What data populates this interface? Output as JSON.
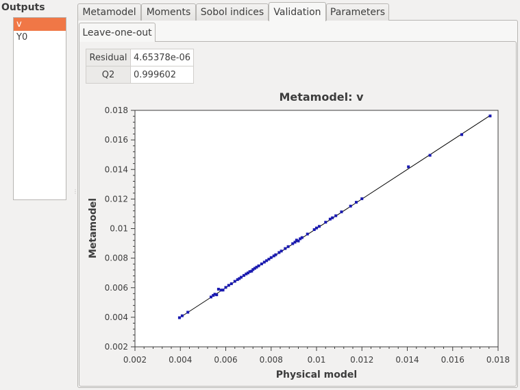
{
  "outputs": {
    "title": "Outputs",
    "items": [
      {
        "label": "v",
        "selected": true
      },
      {
        "label": "Y0",
        "selected": false
      }
    ]
  },
  "tabs": [
    {
      "label": "Metamodel",
      "active": false
    },
    {
      "label": "Moments",
      "active": false
    },
    {
      "label": "Sobol indices",
      "active": false
    },
    {
      "label": "Validation",
      "active": true
    },
    {
      "label": "Parameters",
      "active": false
    }
  ],
  "subtab": {
    "label": "Leave-one-out"
  },
  "results": {
    "residual_label": "Residual",
    "residual_value": "4.65378e-06",
    "q2_label": "Q2",
    "q2_value": "0.999602"
  },
  "colors": {
    "selection": "#f07746",
    "points": "#1a1ab0",
    "line": "#000000"
  },
  "chart_data": {
    "type": "scatter",
    "title": "Metamodel: v",
    "xlabel": "Physical model",
    "ylabel": "Metamodel",
    "xlim": [
      0.002,
      0.018
    ],
    "ylim": [
      0.002,
      0.018
    ],
    "xticks": [
      "0.002",
      "0.004",
      "0.006",
      "0.008",
      "0.01",
      "0.012",
      "0.014",
      "0.016",
      "0.018"
    ],
    "yticks": [
      "0.002",
      "0.004",
      "0.006",
      "0.008",
      "0.01",
      "0.012",
      "0.014",
      "0.016",
      "0.018"
    ],
    "diagonal": [
      [
        0.004,
        0.004
      ],
      [
        0.0177,
        0.0177
      ]
    ],
    "points": [
      [
        0.00396,
        0.00397
      ],
      [
        0.00408,
        0.0041
      ],
      [
        0.00433,
        0.00434
      ],
      [
        0.00535,
        0.00537
      ],
      [
        0.00545,
        0.00548
      ],
      [
        0.00552,
        0.00556
      ],
      [
        0.0056,
        0.00552
      ],
      [
        0.00568,
        0.0059
      ],
      [
        0.0058,
        0.00584
      ],
      [
        0.00588,
        0.00584
      ],
      [
        0.006,
        0.00602
      ],
      [
        0.00613,
        0.00616
      ],
      [
        0.00625,
        0.00627
      ],
      [
        0.0064,
        0.00643
      ],
      [
        0.00652,
        0.00655
      ],
      [
        0.0066,
        0.00662
      ],
      [
        0.00668,
        0.00671
      ],
      [
        0.0068,
        0.00683
      ],
      [
        0.0069,
        0.00693
      ],
      [
        0.00698,
        0.007
      ],
      [
        0.00706,
        0.00709
      ],
      [
        0.00714,
        0.00712
      ],
      [
        0.0072,
        0.00723
      ],
      [
        0.00728,
        0.00731
      ],
      [
        0.00736,
        0.00739
      ],
      [
        0.00745,
        0.00748
      ],
      [
        0.00758,
        0.00761
      ],
      [
        0.0077,
        0.00773
      ],
      [
        0.0078,
        0.00783
      ],
      [
        0.0079,
        0.00793
      ],
      [
        0.008,
        0.00804
      ],
      [
        0.00812,
        0.00815
      ],
      [
        0.0082,
        0.00823
      ],
      [
        0.00835,
        0.00838
      ],
      [
        0.00845,
        0.00848
      ],
      [
        0.00862,
        0.00865
      ],
      [
        0.00875,
        0.00878
      ],
      [
        0.00895,
        0.00898
      ],
      [
        0.00905,
        0.00908
      ],
      [
        0.00912,
        0.00922
      ],
      [
        0.0092,
        0.00916
      ],
      [
        0.00928,
        0.00931
      ],
      [
        0.00936,
        0.00939
      ],
      [
        0.0096,
        0.00963
      ],
      [
        0.0099,
        0.00993
      ],
      [
        0.01,
        0.01004
      ],
      [
        0.01012,
        0.01015
      ],
      [
        0.0104,
        0.01043
      ],
      [
        0.0106,
        0.01064
      ],
      [
        0.0107,
        0.01073
      ],
      [
        0.01085,
        0.01087
      ],
      [
        0.0111,
        0.01113
      ],
      [
        0.0115,
        0.01152
      ],
      [
        0.01175,
        0.01178
      ],
      [
        0.012,
        0.01202
      ],
      [
        0.01405,
        0.01418
      ],
      [
        0.015,
        0.01496
      ],
      [
        0.0164,
        0.01636
      ],
      [
        0.01765,
        0.01762
      ]
    ]
  }
}
